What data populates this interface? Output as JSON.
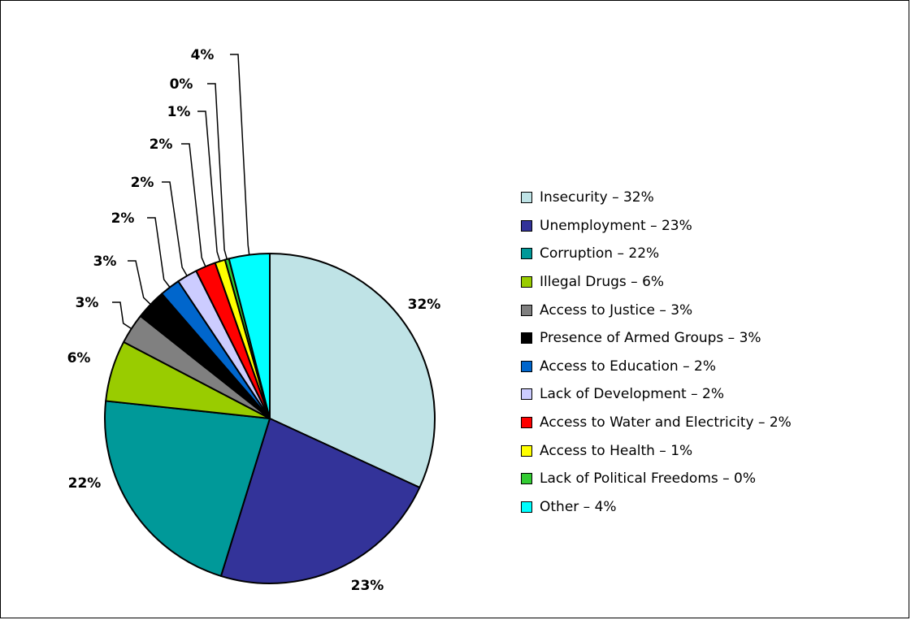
{
  "chart_data": {
    "type": "pie",
    "title": "",
    "start_angle_deg": 90,
    "direction": "clockwise",
    "legend_position": "right",
    "slices": [
      {
        "label": "Insecurity",
        "value": 32,
        "value_label": "32%",
        "legend_text": "Insecurity – 32%",
        "color": "#BFE3E6"
      },
      {
        "label": "Unemployment",
        "value": 23,
        "value_label": "23%",
        "legend_text": "Unemployment – 23%",
        "color": "#333399"
      },
      {
        "label": "Corruption",
        "value": 22,
        "value_label": "22%",
        "legend_text": "Corruption – 22%",
        "color": "#009999"
      },
      {
        "label": "Illegal Drugs",
        "value": 6,
        "value_label": "6%",
        "legend_text": "Illegal Drugs – 6%",
        "color": "#99CC00"
      },
      {
        "label": "Access to Justice",
        "value": 3,
        "value_label": "3%",
        "legend_text": "Access to Justice – 3%",
        "color": "#808080"
      },
      {
        "label": "Presence of Armed Groups",
        "value": 3,
        "value_label": "3%",
        "legend_text": "Presence of Armed Groups – 3%",
        "color": "#000000"
      },
      {
        "label": "Access to Education",
        "value": 2,
        "value_label": "2%",
        "legend_text": "Access to Education – 2%",
        "color": "#0066CC"
      },
      {
        "label": "Lack of Development",
        "value": 2,
        "value_label": "2%",
        "legend_text": "Lack of Development – 2%",
        "color": "#CCCCFF"
      },
      {
        "label": "Access to Water and Electricity",
        "value": 2,
        "value_label": "2%",
        "legend_text": "Access to Water and Electricity – 2%",
        "color": "#FF0000"
      },
      {
        "label": "Access to Health",
        "value": 1,
        "value_label": "1%",
        "legend_text": "Access to Health – 1%",
        "color": "#FFFF00"
      },
      {
        "label": "Lack of Political Freedoms",
        "value": 0.4,
        "value_label": "0%",
        "legend_text": "Lack of Political Freedoms – 0%",
        "color": "#33CC33"
      },
      {
        "label": "Other",
        "value": 4,
        "value_label": "4%",
        "legend_text": "Other – 4%",
        "color": "#00FFFF"
      }
    ]
  }
}
